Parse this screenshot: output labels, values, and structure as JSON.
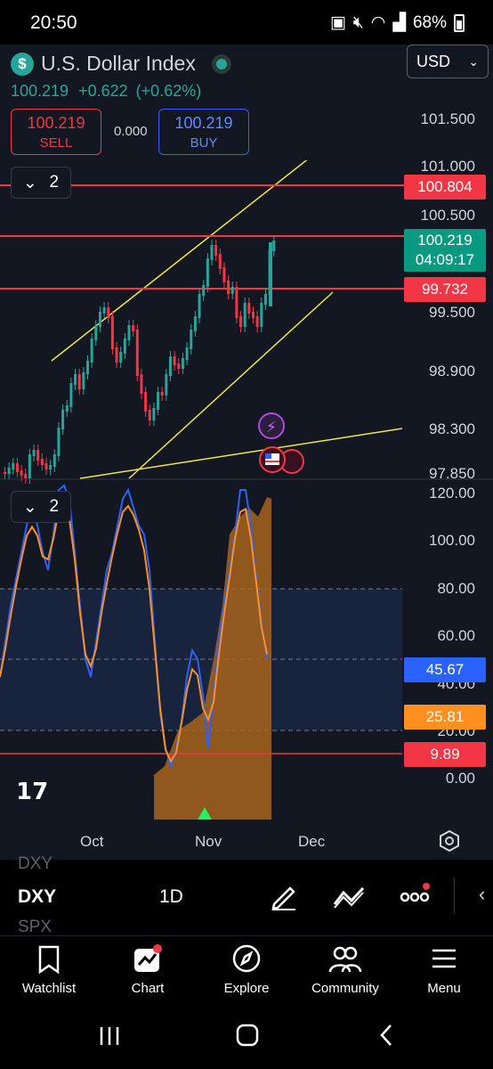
{
  "status_bar": {
    "time": "20:50",
    "battery": "68%"
  },
  "header": {
    "symbol_name": "U.S. Dollar Index",
    "currency": "USD",
    "last_price": "100.219",
    "change": "+0.622",
    "change_pct": "(+0.62%)"
  },
  "trade": {
    "sell_price": "100.219",
    "sell_label": "SELL",
    "spread": "0.000",
    "buy_price": "100.219",
    "buy_label": "BUY"
  },
  "price_pane": {
    "collapse_count": "2",
    "axis_labels": [
      "101.500",
      "101.000",
      "100.500",
      "99.500",
      "98.900",
      "98.300",
      "97.850"
    ],
    "badges": {
      "upper_line": "100.804",
      "current_price": "100.219",
      "countdown": "04:09:17",
      "lower_line": "99.732"
    }
  },
  "indicator_pane": {
    "collapse_count": "2",
    "axis_labels": [
      "120.00",
      "100.00",
      "80.00",
      "60.00",
      "40.00",
      "20.00",
      "0.00"
    ],
    "badges": {
      "blue_line": "45.67",
      "orange_line": "25.81",
      "red_line": "9.89"
    }
  },
  "time_axis": [
    "Oct",
    "Nov",
    "Dec"
  ],
  "toolbar": {
    "prev_symbol": "DXY",
    "symbol": "DXY",
    "next_symbol": "SPX",
    "interval": "1D"
  },
  "bottom_nav": [
    {
      "label": "Watchlist"
    },
    {
      "label": "Chart"
    },
    {
      "label": "Explore"
    },
    {
      "label": "Community"
    },
    {
      "label": "Menu"
    }
  ],
  "colors": {
    "up": "#26a69a",
    "down": "#f23645",
    "trendline": "#f0e642",
    "stoch_k": "#2962ff",
    "stoch_d": "#ff8f1f",
    "background": "#131722"
  }
}
